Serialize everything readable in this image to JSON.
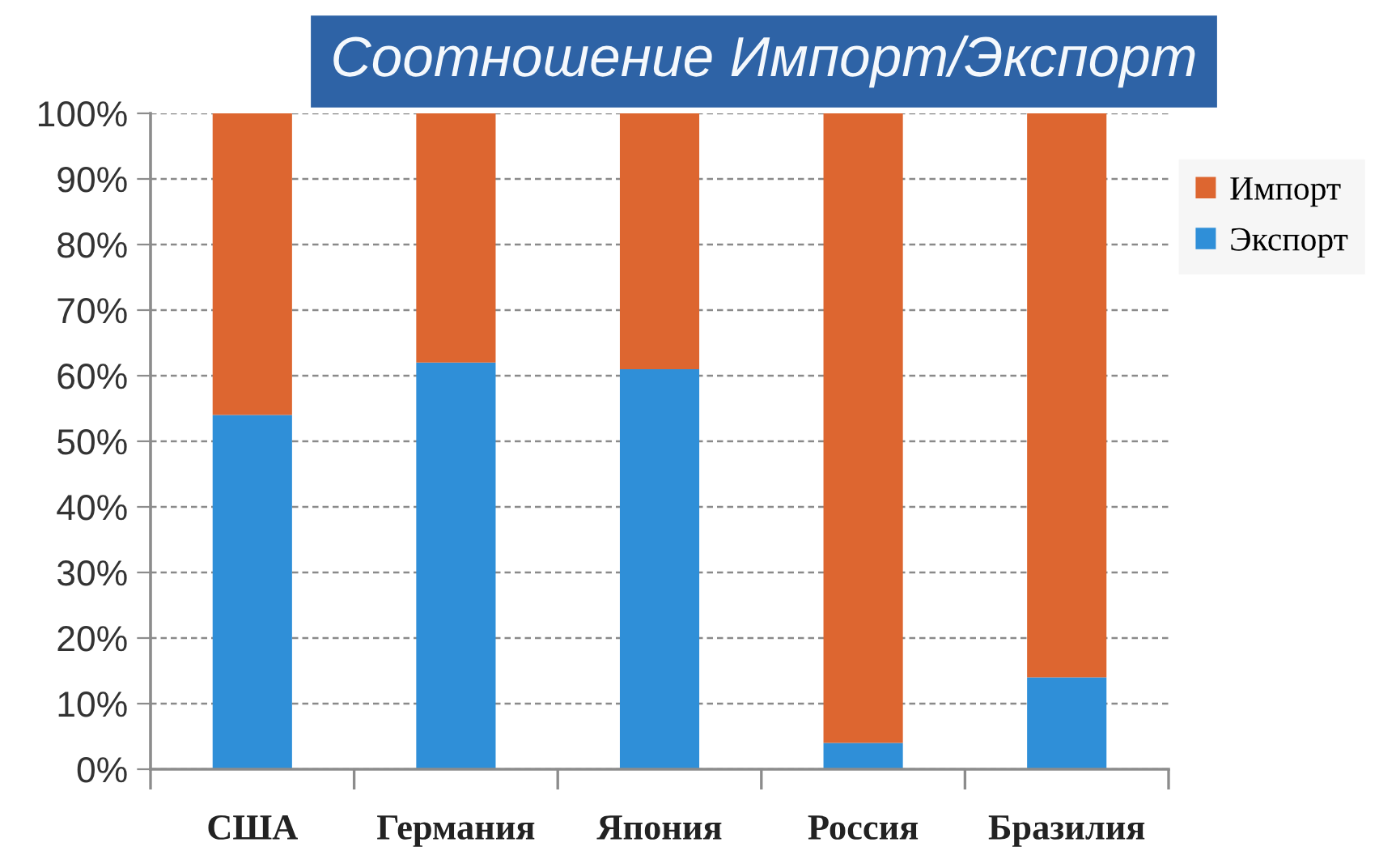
{
  "chart_data": {
    "type": "bar",
    "title": "Соотношение Импорт/Экспорт",
    "categories": [
      "США",
      "Германия",
      "Япония",
      "Россия",
      "Бразилия"
    ],
    "stacked": true,
    "series": [
      {
        "name": "Экспорт",
        "color": "#2f8fd8",
        "values": [
          54,
          62,
          61,
          4,
          14
        ]
      },
      {
        "name": "Импорт",
        "color": "#dd6630",
        "values": [
          46,
          38,
          39,
          96,
          86
        ]
      }
    ],
    "ylim": [
      0,
      100
    ],
    "yticks": [
      {
        "value": 0,
        "label": "0%"
      },
      {
        "value": 10,
        "label": "10%"
      },
      {
        "value": 20,
        "label": "20%"
      },
      {
        "value": 30,
        "label": "30%"
      },
      {
        "value": 40,
        "label": "40%"
      },
      {
        "value": 50,
        "label": "50%"
      },
      {
        "value": 60,
        "label": "60%"
      },
      {
        "value": 70,
        "label": "70%"
      },
      {
        "value": 80,
        "label": "80%"
      },
      {
        "value": 90,
        "label": "90%"
      },
      {
        "value": 100,
        "label": "100%"
      }
    ],
    "grid": "y",
    "legend": "top right"
  }
}
